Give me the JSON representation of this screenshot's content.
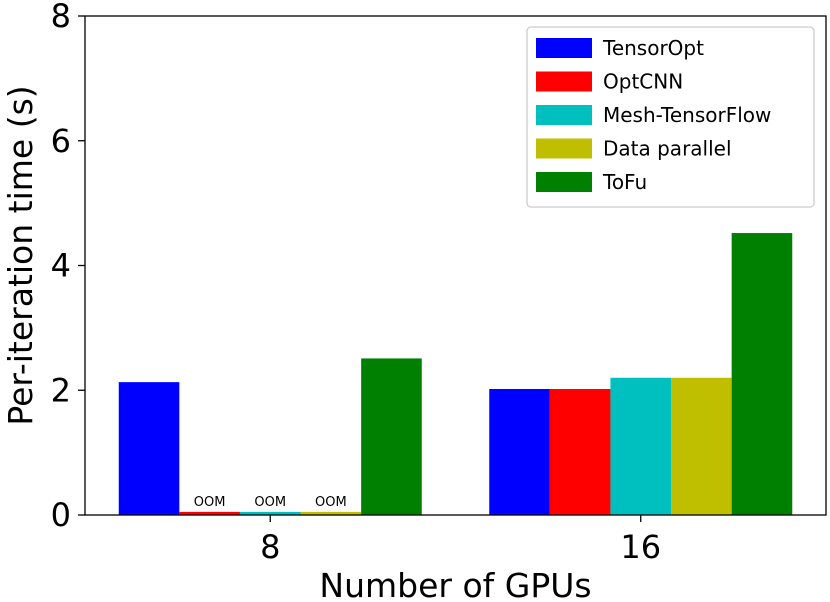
{
  "chart_data": {
    "type": "bar",
    "categories": [
      "8",
      "16"
    ],
    "xlabel": "Number of GPUs",
    "ylabel": "Per-iteration time (s)",
    "ylim": [
      0,
      8
    ],
    "yticks": [
      "0",
      "2",
      "4",
      "6",
      "8"
    ],
    "grid": false,
    "legend_position": "top-right",
    "series": [
      {
        "name": "TensorOpt",
        "color": "#0000ff",
        "values": [
          2.13,
          2.02
        ],
        "labels": [
          "",
          ""
        ]
      },
      {
        "name": "OptCNN",
        "color": "#ff0000",
        "values": [
          0.05,
          2.02
        ],
        "labels": [
          "OOM",
          ""
        ]
      },
      {
        "name": "Mesh-TensorFlow",
        "color": "#00bfbf",
        "values": [
          0.05,
          2.2
        ],
        "labels": [
          "OOM",
          ""
        ]
      },
      {
        "name": "Data parallel",
        "color": "#bfbf00",
        "values": [
          0.05,
          2.2
        ],
        "labels": [
          "OOM",
          ""
        ]
      },
      {
        "name": "ToFu",
        "color": "#008000",
        "values": [
          2.51,
          4.52
        ],
        "labels": [
          "",
          ""
        ]
      }
    ]
  }
}
